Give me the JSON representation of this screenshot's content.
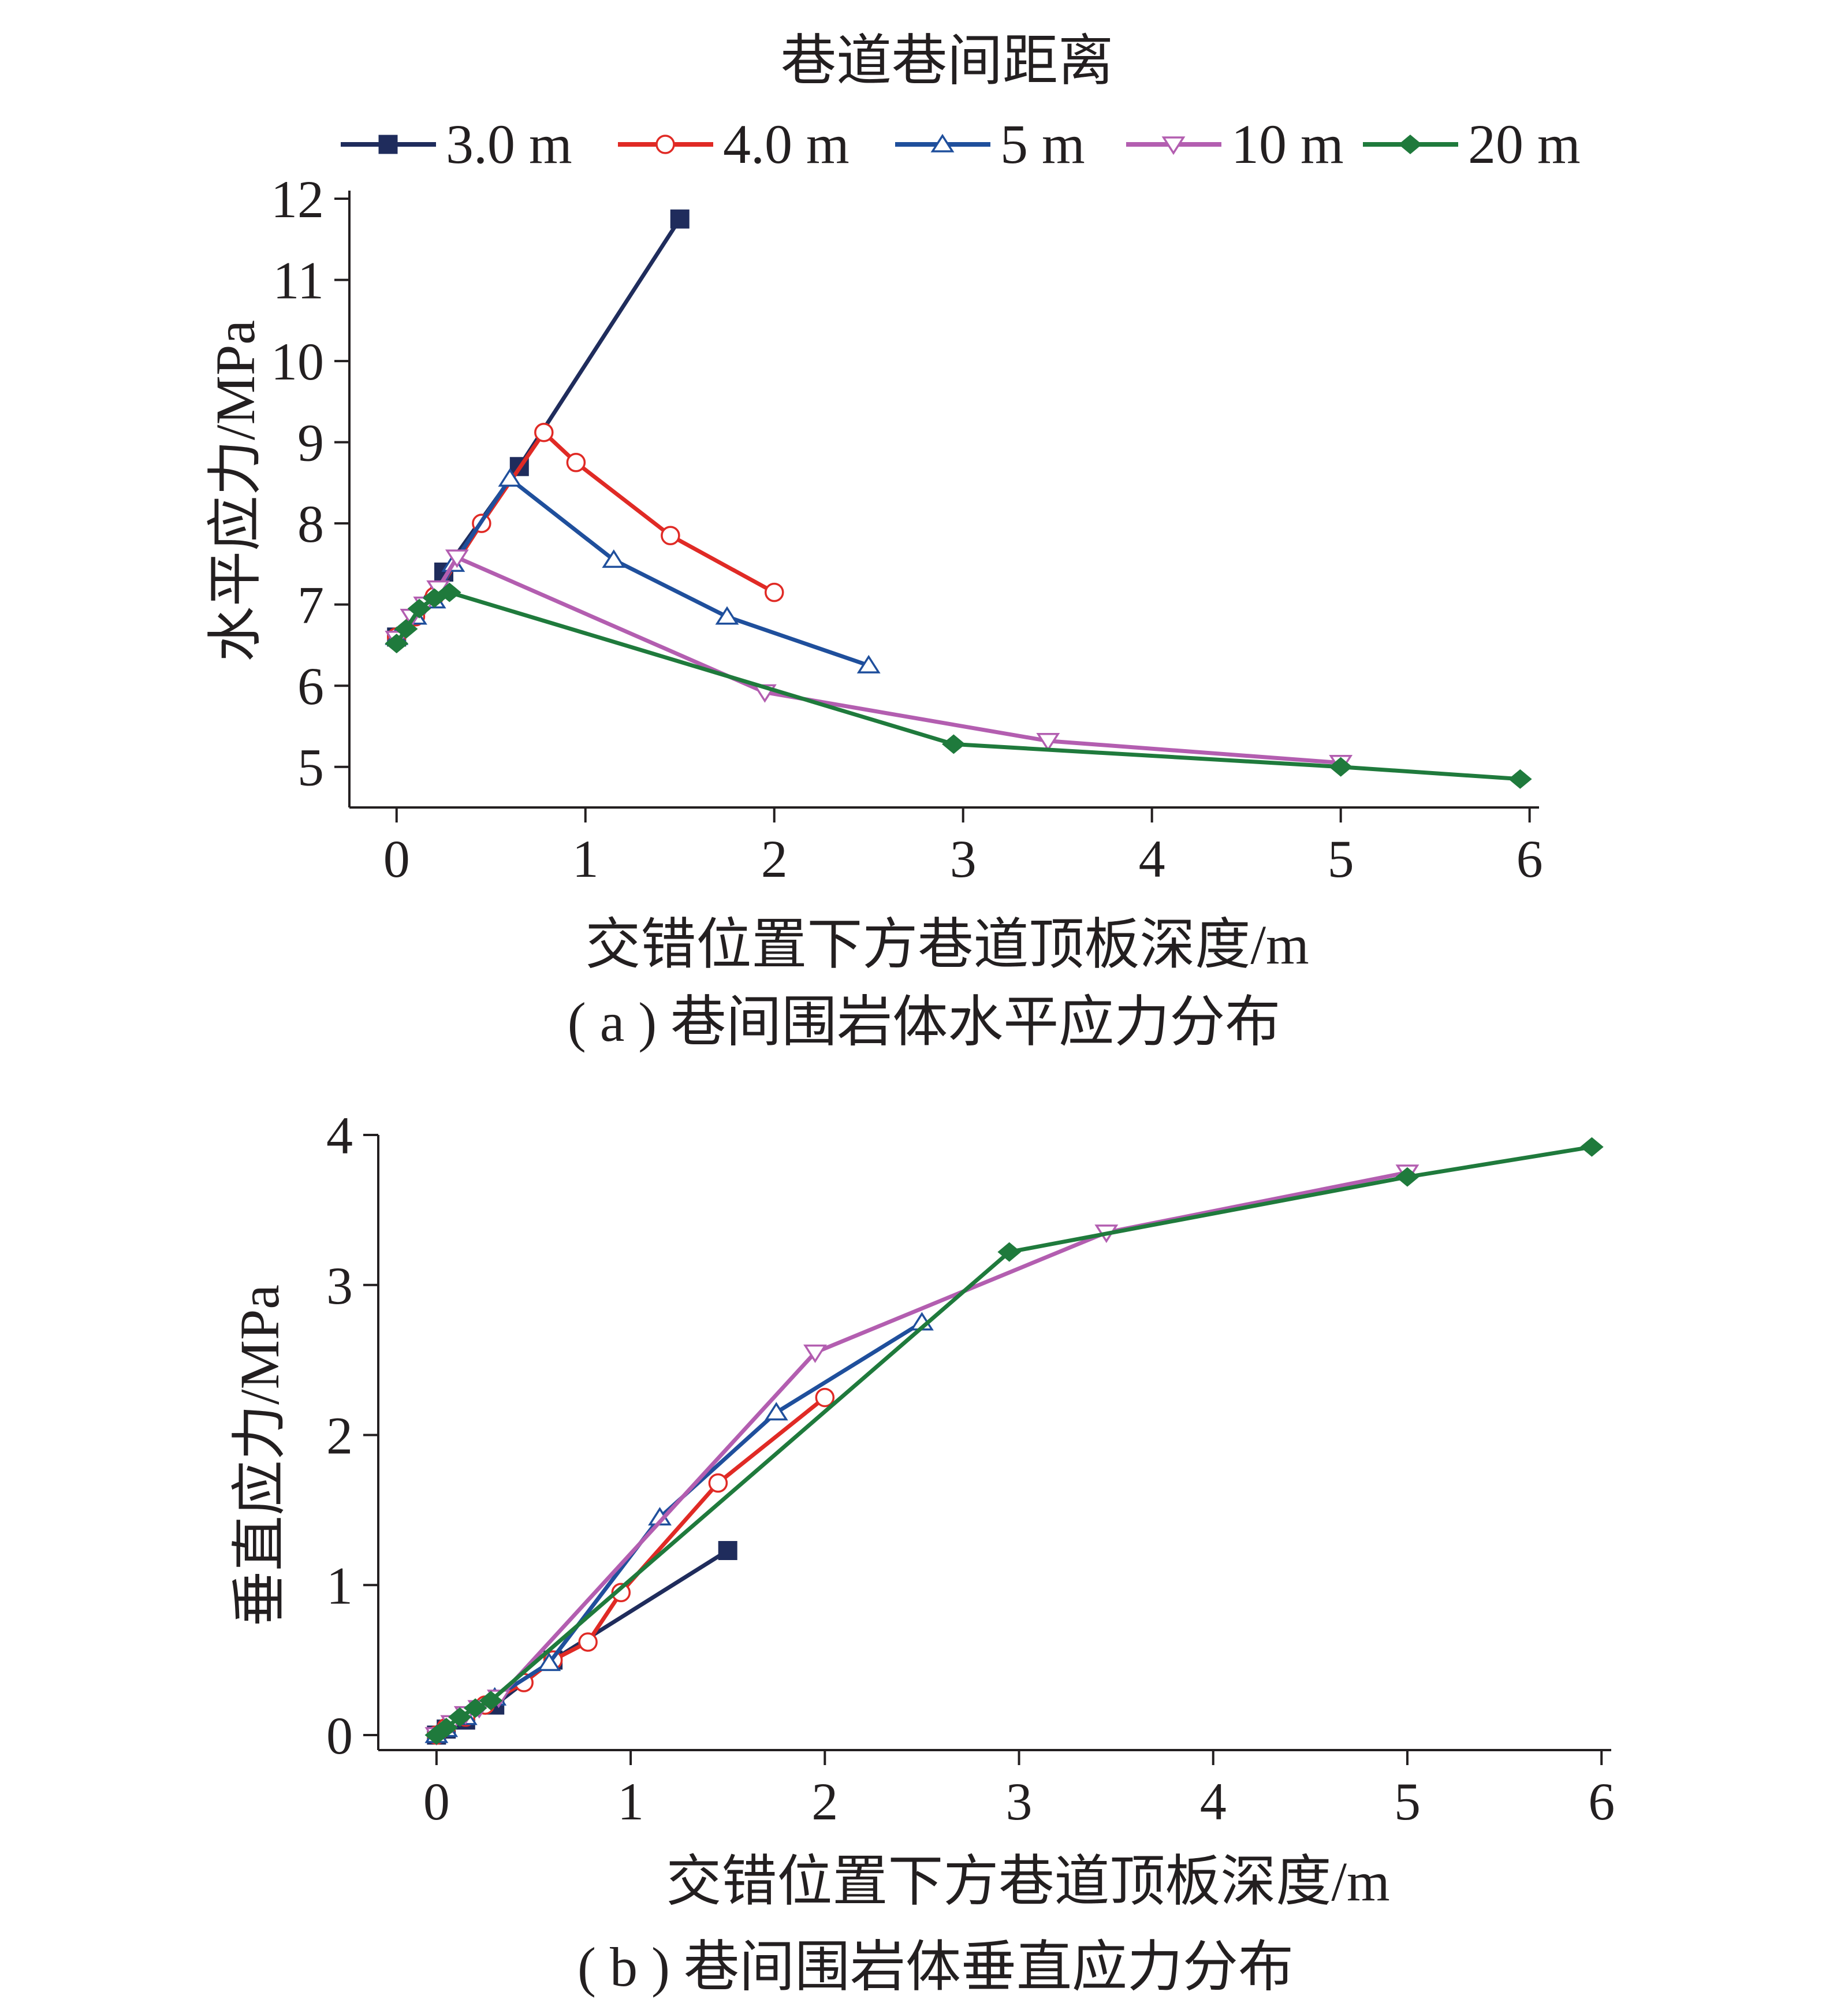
{
  "legend": {
    "title": "巷道巷间距离",
    "entries": [
      {
        "label": "3.0 m",
        "color": "#1f2c5c",
        "marker": "square"
      },
      {
        "label": "4.0 m",
        "color": "#e02a25",
        "marker": "circle"
      },
      {
        "label": "5 m",
        "color": "#1f4f9c",
        "marker": "triangle-up"
      },
      {
        "label": "10 m",
        "color": "#b35eb0",
        "marker": "triangle-down"
      },
      {
        "label": "20 m",
        "color": "#1f7a3c",
        "marker": "diamond"
      }
    ]
  },
  "chart_data": [
    {
      "type": "line",
      "caption": "( a ) 巷间围岩体水平应力分布",
      "xlabel": "交错位置下方巷道顶板深度/m",
      "ylabel": "水平应力/MPa",
      "xlim": [
        -0.25,
        6.05
      ],
      "ylim": [
        4.5,
        12.1
      ],
      "xticks": [
        "0",
        "1",
        "2",
        "3",
        "4",
        "5",
        "6"
      ],
      "yticks": [
        "5",
        "6",
        "7",
        "8",
        "9",
        "10",
        "11",
        "12"
      ],
      "series": [
        {
          "name": "3.0 m",
          "x": [
            0,
            0.25,
            0.65,
            1.5
          ],
          "y": [
            6.6,
            7.4,
            8.7,
            11.75
          ]
        },
        {
          "name": "4.0 m",
          "x": [
            0,
            0.1,
            0.2,
            0.45,
            0.78,
            0.95,
            1.45,
            2.0
          ],
          "y": [
            6.6,
            6.85,
            7.1,
            8.0,
            9.12,
            8.75,
            7.85,
            7.15
          ]
        },
        {
          "name": "5 m",
          "x": [
            0,
            0.1,
            0.2,
            0.3,
            0.6,
            1.15,
            1.75,
            2.5
          ],
          "y": [
            6.6,
            6.85,
            7.05,
            7.5,
            8.55,
            7.55,
            6.85,
            6.25
          ]
        },
        {
          "name": "10 m",
          "x": [
            0,
            0.08,
            0.15,
            0.22,
            0.32,
            1.95,
            3.45,
            5.0
          ],
          "y": [
            6.58,
            6.85,
            7.0,
            7.2,
            7.58,
            5.92,
            5.32,
            5.05
          ]
        },
        {
          "name": "20 m",
          "x": [
            0,
            0.05,
            0.12,
            0.2,
            0.28,
            2.95,
            5.0,
            5.95
          ],
          "y": [
            6.52,
            6.7,
            6.95,
            7.08,
            7.15,
            5.28,
            5.0,
            4.85
          ]
        }
      ]
    },
    {
      "type": "line",
      "caption": "( b ) 巷间围岩体垂直应力分布",
      "xlabel": "交错位置下方巷道顶板深度/m",
      "ylabel": "垂直应力/MPa",
      "xlim": [
        -0.3,
        6.05
      ],
      "ylim": [
        -0.1,
        4.0
      ],
      "xticks": [
        "0",
        "1",
        "2",
        "3",
        "4",
        "5",
        "6"
      ],
      "yticks": [
        "0",
        "1",
        "2",
        "3",
        "4"
      ],
      "series": [
        {
          "name": "3.0 m",
          "x": [
            0,
            0.05,
            0.15,
            0.3,
            0.6,
            1.5
          ],
          "y": [
            0,
            0.04,
            0.1,
            0.2,
            0.5,
            1.23
          ]
        },
        {
          "name": "4.0 m",
          "x": [
            0,
            0.05,
            0.15,
            0.25,
            0.45,
            0.6,
            0.78,
            0.95,
            1.45,
            2.0
          ],
          "y": [
            0,
            0.05,
            0.12,
            0.2,
            0.35,
            0.5,
            0.62,
            0.95,
            1.68,
            2.25
          ]
        },
        {
          "name": "5 m",
          "x": [
            0,
            0.05,
            0.15,
            0.3,
            0.58,
            1.15,
            1.75,
            2.5
          ],
          "y": [
            0,
            0.04,
            0.12,
            0.25,
            0.48,
            1.45,
            2.15,
            2.75
          ]
        },
        {
          "name": "10 m",
          "x": [
            0,
            0.08,
            0.15,
            0.22,
            0.32,
            1.95,
            3.45,
            5.0
          ],
          "y": [
            0,
            0.08,
            0.14,
            0.18,
            0.25,
            2.55,
            3.35,
            3.75
          ]
        },
        {
          "name": "20 m",
          "x": [
            0,
            0.05,
            0.12,
            0.2,
            0.28,
            2.95,
            5.0,
            5.95
          ],
          "y": [
            0,
            0.05,
            0.12,
            0.18,
            0.23,
            3.22,
            3.72,
            3.92
          ]
        }
      ]
    }
  ]
}
